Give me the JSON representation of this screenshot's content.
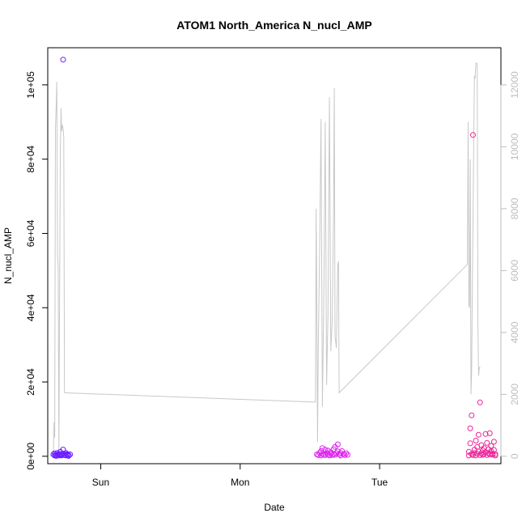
{
  "chart_data": {
    "type": "scatter",
    "title": "ATOM1 North_America N_nucl_AMP",
    "xlabel": "Date",
    "ylabel": "N_nucl_AMP",
    "x_ticks": [
      "Sun",
      "Mon",
      "Tue"
    ],
    "x_tick_positions": [
      0,
      1,
      2
    ],
    "xlim": [
      -0.38,
      2.87
    ],
    "ylim": [
      -2000,
      110000
    ],
    "y_ticks": [
      0,
      20000,
      40000,
      60000,
      80000,
      100000
    ],
    "y_tick_labels": [
      "0e+00",
      "2e+04",
      "4e+04",
      "6e+04",
      "8e+04",
      "1e+05"
    ],
    "y2lim": [
      -240,
      13200
    ],
    "y2_ticks": [
      0,
      2000,
      4000,
      6000,
      8000,
      10000,
      12000
    ],
    "y2_tick_labels": [
      "0",
      "2000",
      "4000",
      "6000",
      "8000",
      "10000",
      "12000"
    ],
    "grid": false,
    "colors": {
      "series_sun": "#6a1bff",
      "series_mon": "#dd22ee",
      "series_tue": "#ee2299",
      "line": "#c8c8c8",
      "right_axis": "#bdbdbd"
    },
    "series": [
      {
        "values": [
          [
            -0.34,
            500
          ],
          [
            -0.33,
            200
          ],
          [
            -0.33,
            800
          ],
          [
            -0.32,
            300
          ],
          [
            -0.32,
            100
          ],
          [
            -0.31,
            400
          ],
          [
            -0.31,
            900
          ],
          [
            -0.3,
            200
          ],
          [
            -0.3,
            600
          ],
          [
            -0.29,
            300
          ],
          [
            -0.29,
            1200
          ],
          [
            -0.28,
            500
          ],
          [
            -0.28,
            200
          ],
          [
            -0.27,
            700
          ],
          [
            -0.27,
            1800
          ],
          [
            -0.26,
            400
          ],
          [
            -0.26,
            300
          ],
          [
            -0.25,
            900
          ],
          [
            -0.25,
            200
          ],
          [
            -0.24,
            600
          ],
          [
            -0.24,
            400
          ],
          [
            -0.23,
            100
          ],
          [
            -0.23,
            300
          ],
          [
            -0.22,
            500
          ],
          [
            -0.27,
            106800
          ]
        ]
      },
      {
        "values": [
          [
            1.55,
            500
          ],
          [
            1.56,
            300
          ],
          [
            1.57,
            900
          ],
          [
            1.58,
            200
          ],
          [
            1.58,
            1400
          ],
          [
            1.59,
            600
          ],
          [
            1.59,
            2200
          ],
          [
            1.6,
            400
          ],
          [
            1.61,
            1800
          ],
          [
            1.61,
            300
          ],
          [
            1.62,
            900
          ],
          [
            1.63,
            500
          ],
          [
            1.63,
            1500
          ],
          [
            1.64,
            200
          ],
          [
            1.65,
            700
          ],
          [
            1.65,
            1100
          ],
          [
            1.66,
            300
          ],
          [
            1.67,
            1900
          ],
          [
            1.67,
            600
          ],
          [
            1.68,
            2500
          ],
          [
            1.68,
            400
          ],
          [
            1.69,
            800
          ],
          [
            1.7,
            3200
          ],
          [
            1.7,
            1300
          ],
          [
            1.71,
            500
          ],
          [
            1.72,
            900
          ],
          [
            1.72,
            200
          ],
          [
            1.73,
            1400
          ],
          [
            1.74,
            600
          ],
          [
            1.75,
            300
          ],
          [
            1.76,
            800
          ],
          [
            1.77,
            400
          ]
        ]
      },
      {
        "values": [
          [
            2.64,
            200
          ],
          [
            2.64,
            1200
          ],
          [
            2.65,
            3500
          ],
          [
            2.65,
            7500
          ],
          [
            2.66,
            11000
          ],
          [
            2.66,
            600
          ],
          [
            2.67,
            300
          ],
          [
            2.67,
            86500
          ],
          [
            2.68,
            1800
          ],
          [
            2.68,
            900
          ],
          [
            2.69,
            4200
          ],
          [
            2.69,
            200
          ],
          [
            2.7,
            700
          ],
          [
            2.7,
            2500
          ],
          [
            2.71,
            1300
          ],
          [
            2.71,
            5800
          ],
          [
            2.72,
            14500
          ],
          [
            2.72,
            300
          ],
          [
            2.73,
            3000
          ],
          [
            2.73,
            800
          ],
          [
            2.74,
            1600
          ],
          [
            2.74,
            400
          ],
          [
            2.75,
            2200
          ],
          [
            2.75,
            600
          ],
          [
            2.76,
            6000
          ],
          [
            2.76,
            1100
          ],
          [
            2.77,
            300
          ],
          [
            2.77,
            3600
          ],
          [
            2.78,
            900
          ],
          [
            2.78,
            1900
          ],
          [
            2.79,
            6200
          ],
          [
            2.79,
            500
          ],
          [
            2.8,
            1400
          ],
          [
            2.8,
            2800
          ],
          [
            2.81,
            700
          ],
          [
            2.81,
            400
          ],
          [
            2.82,
            1700
          ],
          [
            2.82,
            3900
          ],
          [
            2.83,
            600
          ],
          [
            2.83,
            200
          ]
        ]
      }
    ],
    "line_series": {
      "axis": "right",
      "values": [
        [
          -0.34,
          0
        ],
        [
          -0.335,
          1100
        ],
        [
          -0.33,
          600
        ],
        [
          -0.325,
          10600
        ],
        [
          -0.32,
          11200
        ],
        [
          -0.315,
          12100
        ],
        [
          -0.31,
          6500
        ],
        [
          -0.305,
          6100
        ],
        [
          -0.3,
          100
        ],
        [
          -0.295,
          4900
        ],
        [
          -0.29,
          9700
        ],
        [
          -0.285,
          11250
        ],
        [
          -0.28,
          10500
        ],
        [
          -0.275,
          10700
        ],
        [
          -0.27,
          10600
        ],
        [
          -0.265,
          10300
        ],
        [
          -0.26,
          2050
        ],
        [
          1.54,
          1750
        ],
        [
          1.545,
          8000
        ],
        [
          1.55,
          4400
        ],
        [
          1.555,
          450
        ],
        [
          1.56,
          3500
        ],
        [
          1.57,
          6700
        ],
        [
          1.58,
          10900
        ],
        [
          1.59,
          1600
        ],
        [
          1.6,
          5200
        ],
        [
          1.61,
          10800
        ],
        [
          1.62,
          2300
        ],
        [
          1.63,
          4600
        ],
        [
          1.64,
          11600
        ],
        [
          1.65,
          3400
        ],
        [
          1.66,
          4400
        ],
        [
          1.67,
          7900
        ],
        [
          1.675,
          11900
        ],
        [
          1.68,
          3900
        ],
        [
          1.69,
          3500
        ],
        [
          1.7,
          6200
        ],
        [
          1.705,
          6300
        ],
        [
          1.71,
          2050
        ],
        [
          2.63,
          6200
        ],
        [
          2.635,
          10800
        ],
        [
          2.64,
          4900
        ],
        [
          2.645,
          4800
        ],
        [
          2.65,
          9600
        ],
        [
          2.655,
          2000
        ],
        [
          2.66,
          2700
        ],
        [
          2.665,
          5500
        ],
        [
          2.67,
          7500
        ],
        [
          2.675,
          10200
        ],
        [
          2.68,
          12300
        ],
        [
          2.685,
          12200
        ],
        [
          2.69,
          12700
        ],
        [
          2.7,
          12700
        ],
        [
          2.705,
          4200
        ],
        [
          2.71,
          2600
        ],
        [
          2.715,
          2850
        ],
        [
          2.72,
          2900
        ]
      ]
    }
  }
}
